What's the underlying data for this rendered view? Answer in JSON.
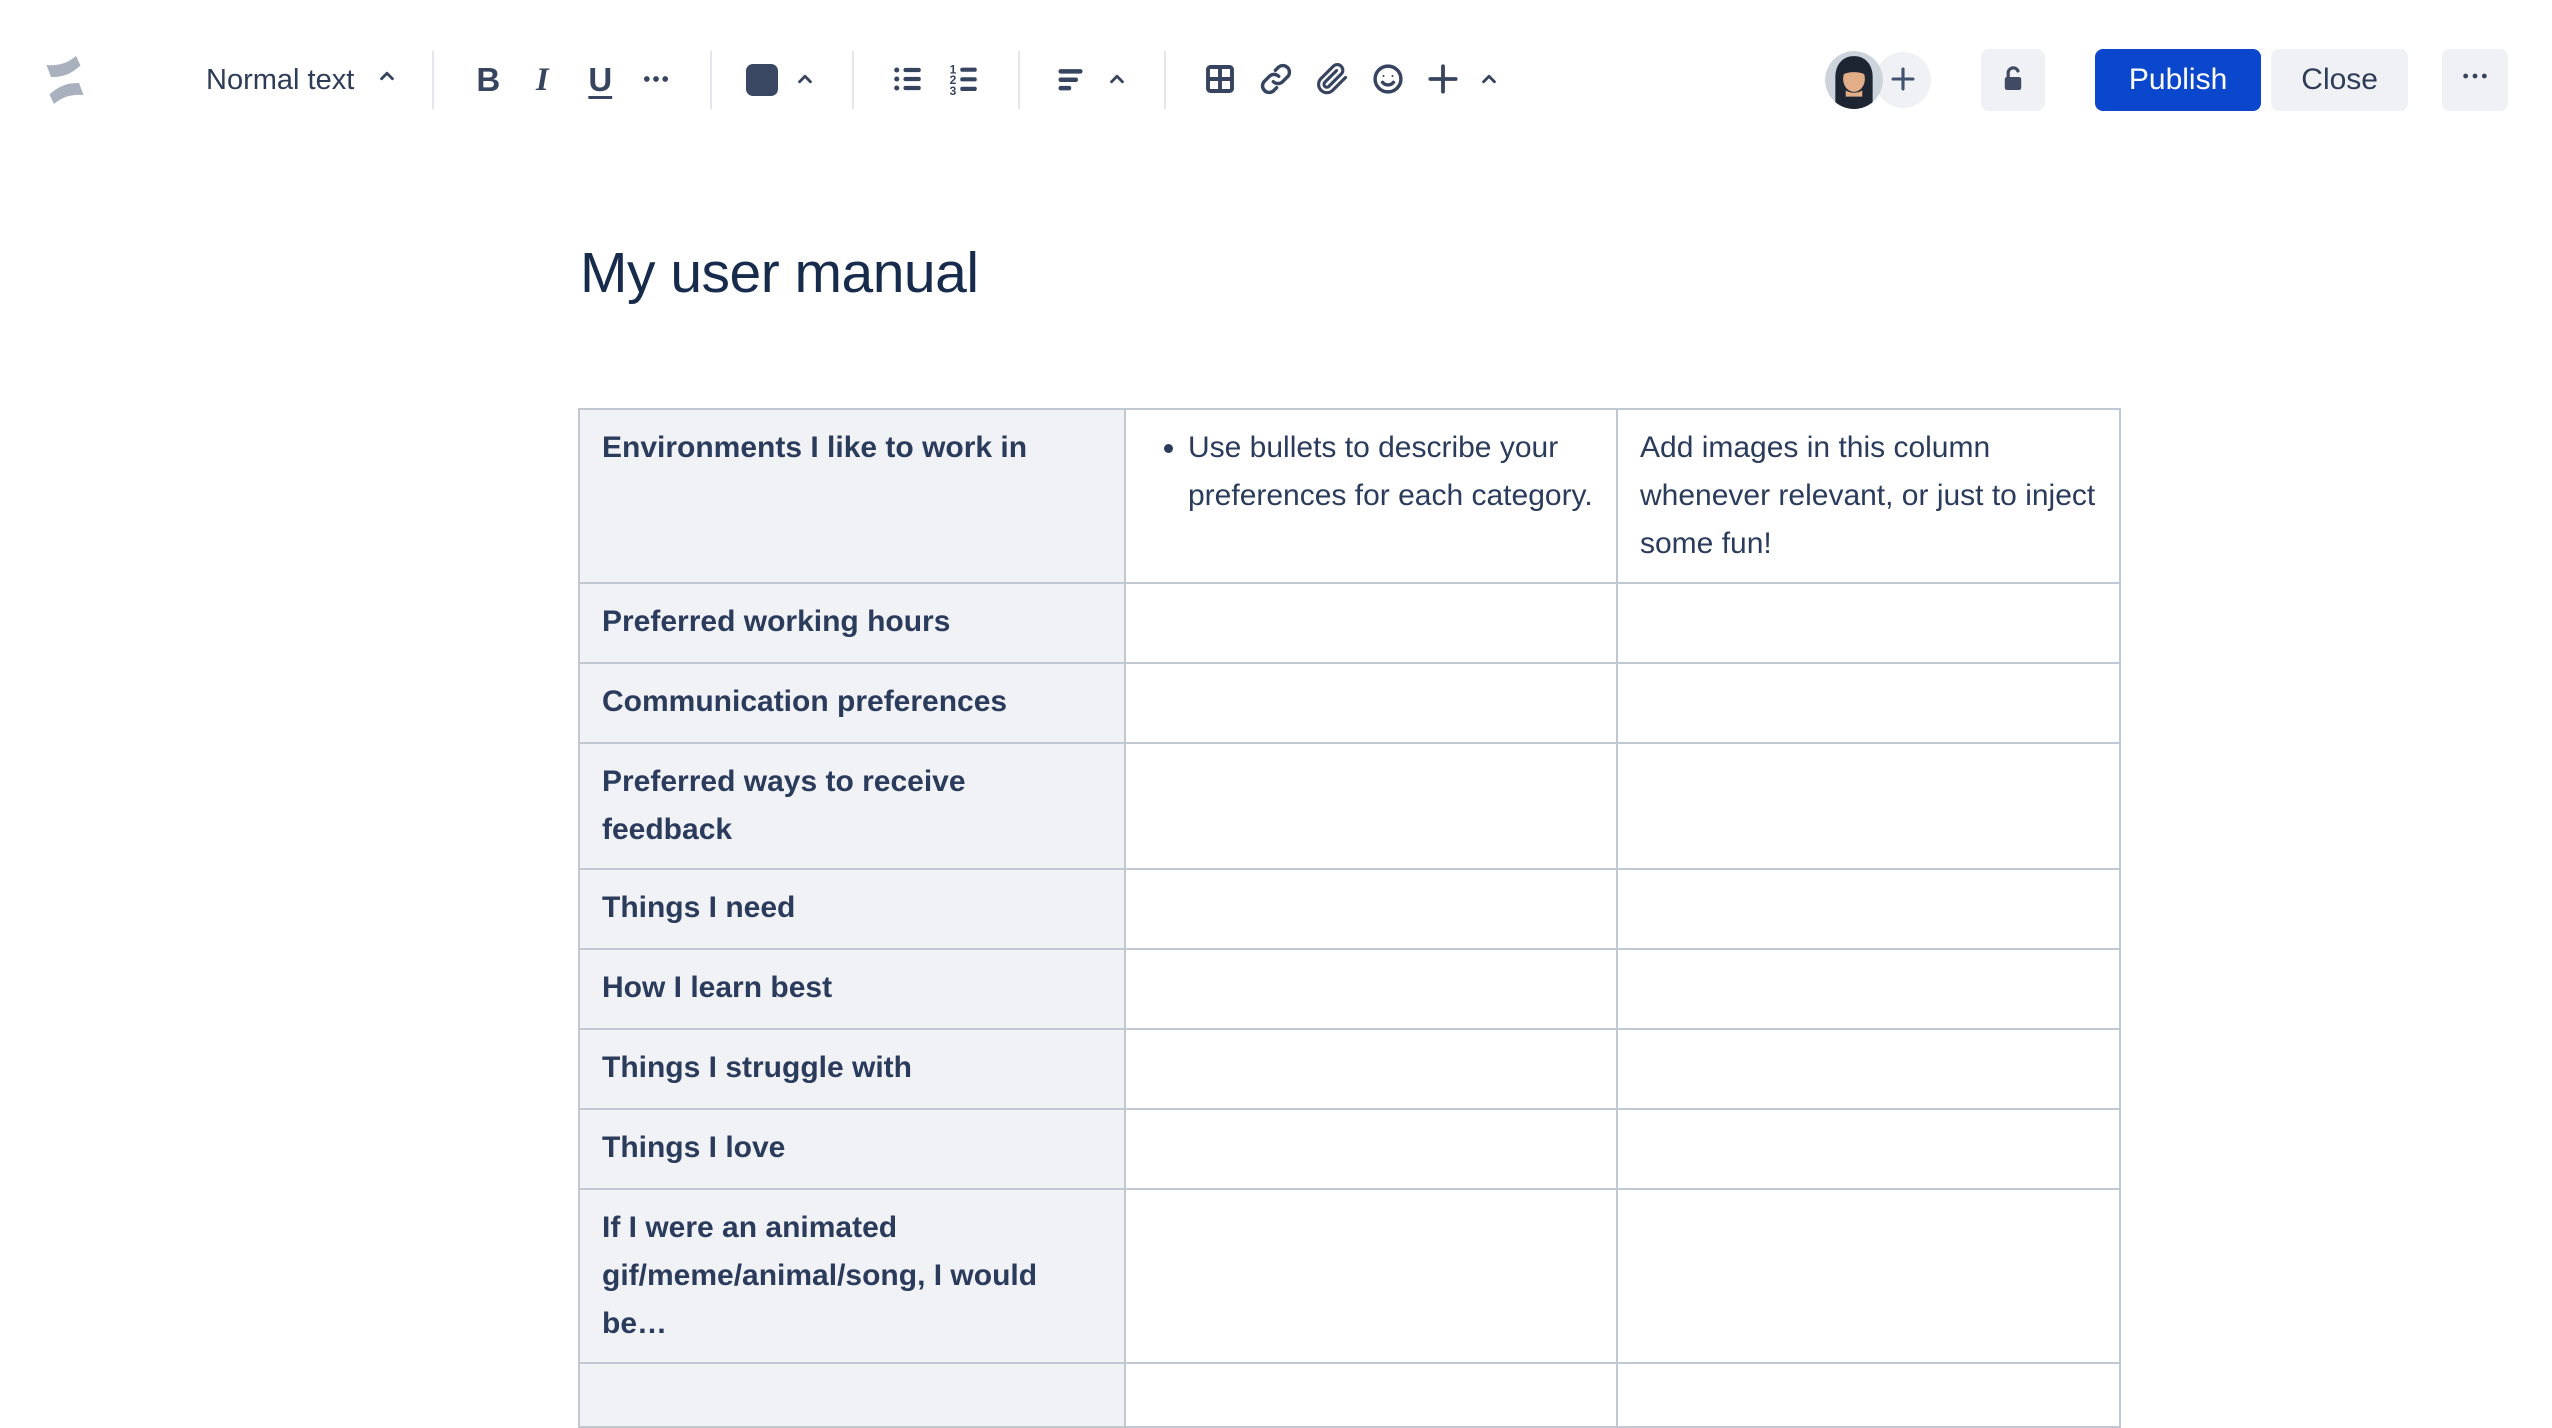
{
  "page": {
    "title": "My user manual"
  },
  "toolbar": {
    "text_style_label": "Normal text",
    "bold_label": "B",
    "italic_label": "I",
    "underline_label": "U"
  },
  "actions": {
    "publish_label": "Publish",
    "close_label": "Close"
  },
  "icons": {
    "logo": "confluence-logo",
    "text_style_chevron": "chevron-up",
    "more_formatting": "ellipsis-dots",
    "text_color": "color-swatch",
    "lists": [
      "bullet-list",
      "numbered-list"
    ],
    "alignment": "align-left",
    "insert_group": [
      "table-grid",
      "link-chain",
      "paperclip",
      "emoji-smiley",
      "plus"
    ],
    "collaboration": [
      "avatar",
      "plus-circle"
    ],
    "restrictions": "unlocked-padlock",
    "overflow": "ellipsis-dots"
  },
  "colors": {
    "accent_blue": "#0A47CC",
    "text_dark": "#172B4D",
    "icon_navy": "#37445F",
    "neutral_button_bg": "#F0F1F4",
    "table_border": "#C2C8D2",
    "label_cell_bg": "#F1F2F5"
  },
  "table": {
    "rows": [
      {
        "label": "Environments I like to work in",
        "bullets": [
          "Use bullets to describe your preferences for each category."
        ],
        "note": "Add images in this column whenever relevant, or just to inject some fun!"
      },
      {
        "label": "Preferred working hours",
        "bullets": [],
        "note": ""
      },
      {
        "label": "Communication preferences",
        "bullets": [],
        "note": ""
      },
      {
        "label": "Preferred ways to receive feedback",
        "bullets": [],
        "note": ""
      },
      {
        "label": "Things I need",
        "bullets": [],
        "note": ""
      },
      {
        "label": "How I learn best",
        "bullets": [],
        "note": ""
      },
      {
        "label": "Things I struggle with",
        "bullets": [],
        "note": ""
      },
      {
        "label": "Things I love",
        "bullets": [],
        "note": ""
      },
      {
        "label": "If I were an animated gif/meme/animal/song, I would be…",
        "bullets": [],
        "note": ""
      },
      {
        "label": "",
        "bullets": [],
        "note": "",
        "partial": true
      }
    ]
  }
}
